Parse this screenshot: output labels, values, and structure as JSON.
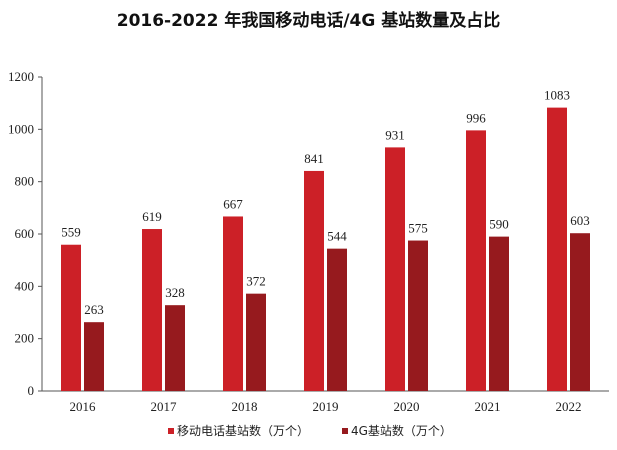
{
  "chart_data": {
    "type": "bar",
    "title": "2016-2022 年我国移动电话/4G 基站数量及占比",
    "categories": [
      "2016",
      "2017",
      "2018",
      "2019",
      "2020",
      "2021",
      "2022"
    ],
    "series": [
      {
        "name": "移动电话基站数（万个）",
        "values": [
          559,
          619,
          667,
          841,
          931,
          996,
          1083
        ],
        "color": "#cc2027"
      },
      {
        "name": "4G基站数（万个）",
        "values": [
          263,
          328,
          372,
          544,
          575,
          590,
          603
        ],
        "color": "#961a1e"
      }
    ],
    "ylim": [
      0,
      1200
    ],
    "yticks": [
      "0",
      "200",
      "400",
      "600",
      "800",
      "1000",
      "1200"
    ],
    "xlabel": "",
    "ylabel": "",
    "legend_position": "bottom",
    "grid": false
  }
}
